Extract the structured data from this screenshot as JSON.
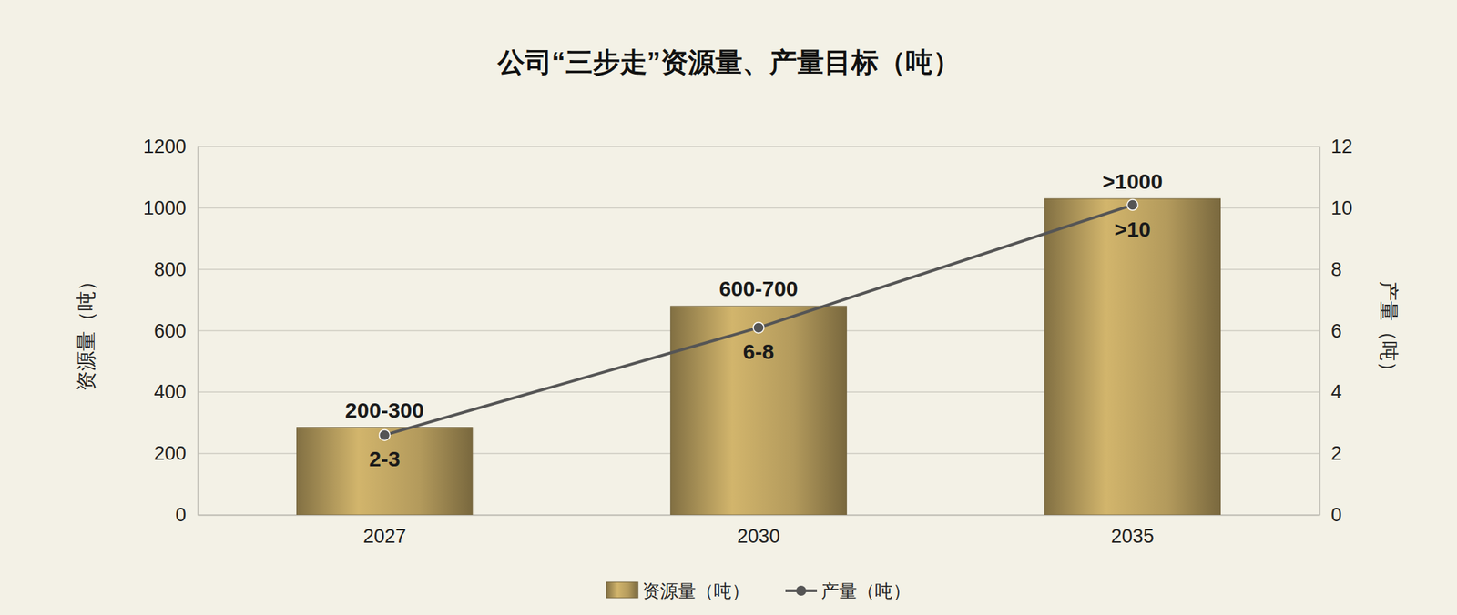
{
  "chart_data": {
    "type": "bar",
    "title": "公司“三步走”资源量、产量目标（吨）",
    "categories": [
      "2027",
      "2030",
      "2035"
    ],
    "series": [
      {
        "name": "资源量（吨）",
        "type": "bar",
        "color": "#b39a5c",
        "values": [
          285,
          680,
          1030
        ],
        "value_labels": [
          "200-300",
          "600-700",
          ">1000"
        ]
      },
      {
        "name": "产量（吨）",
        "type": "line",
        "axis": "y2",
        "color": "#555555",
        "marker": "circle",
        "line_style": "solid",
        "values": [
          2.6,
          6.1,
          10.1
        ],
        "value_labels": [
          "2-3",
          "6-8",
          ">10"
        ]
      }
    ],
    "y_label": "资源量（吨）",
    "y2_label": "产量（吨）",
    "ylim": [
      0,
      1200
    ],
    "yticks": [
      0,
      200,
      400,
      600,
      800,
      1000,
      1200
    ],
    "y2lim": [
      0,
      12
    ],
    "y2ticks": [
      0,
      2,
      4,
      6,
      8,
      10,
      12
    ],
    "grid": true,
    "legend": "bottom",
    "data_labels": true
  }
}
